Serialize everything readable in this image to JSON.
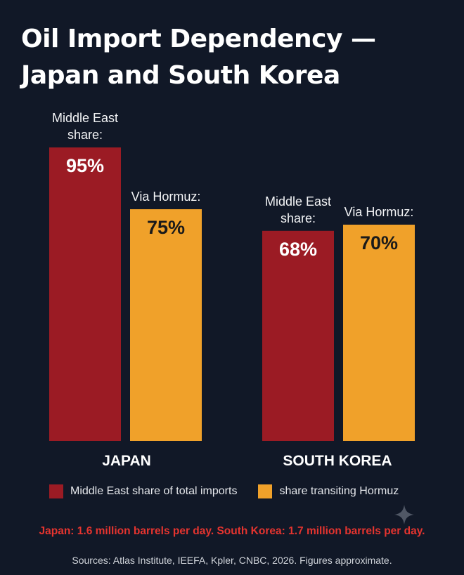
{
  "title_line1": "Oil Import Dependency —",
  "title_line2": "Japan and South Korea",
  "colors": {
    "background": "#111827",
    "middle_east": "#9b1b24",
    "hormuz": "#f0a12a",
    "note": "#e5342f"
  },
  "chart_data": {
    "type": "bar",
    "categories": [
      "JAPAN",
      "SOUTH KOREA"
    ],
    "series": [
      {
        "name": "Middle East share of total imports",
        "values": [
          95,
          68
        ],
        "value_labels": [
          "95%",
          "68%"
        ],
        "bar_label_line1": "Middle East",
        "bar_label_line2": "share:"
      },
      {
        "name": "share transiting Hormuz",
        "values": [
          75,
          70
        ],
        "value_labels": [
          "75%",
          "70%"
        ],
        "bar_label_line1": "Via Hormuz:"
      }
    ],
    "ylim": [
      0,
      100
    ],
    "grid": false,
    "legend_position": "bottom"
  },
  "legend": {
    "item1": "Middle East share of total imports",
    "item2": "share transiting Hormuz"
  },
  "note": "Japan: 1.6 million barrels per day. South Korea: 1.7 million barrels per day.",
  "sources": "Sources: Atlas Institute, IEEFA, Kpler, CNBC, 2026. Figures approximate."
}
